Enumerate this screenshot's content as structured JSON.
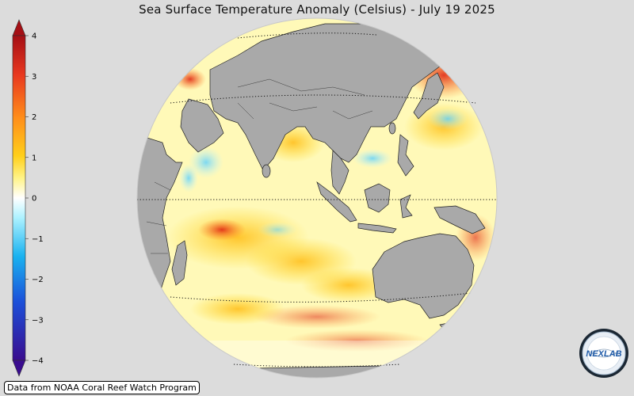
{
  "title": "Sea Surface Temperature Anomaly (Celsius) - July 19 2025",
  "colorbar": {
    "min": -4,
    "max": 4,
    "ticks": [
      "4",
      "3",
      "2",
      "1",
      "0",
      "−1",
      "−2",
      "−3",
      "−4"
    ],
    "colors": [
      "#3a0c8f",
      "#1b4fd9",
      "#19b2f0",
      "#aef2ff",
      "#ffffff",
      "#fff48a",
      "#ffcf1a",
      "#ff8c1a",
      "#e8371f",
      "#a50f15"
    ]
  },
  "map": {
    "projection": "orthographic",
    "land_color": "#a9a9a9",
    "disk_color": "#fff9b8"
  },
  "credit": "Data from NOAA Coral Reef Watch Program",
  "logo": {
    "text": "NEXLAB",
    "icon": "nexlab-logo"
  }
}
